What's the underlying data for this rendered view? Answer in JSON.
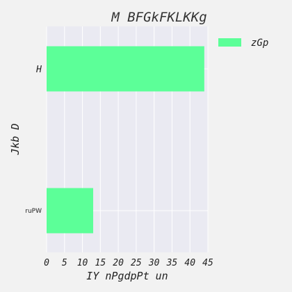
{
  "chart_data": {
    "type": "bar",
    "orientation": "horizontal",
    "title": "M BFGkFKLKKg",
    "xlabel": "IY nPgdpPt un",
    "ylabel": "Jkb D",
    "categories": [
      "ruPW",
      "H"
    ],
    "series": [
      {
        "name": "zGp",
        "values": [
          13,
          44
        ],
        "color": "#5cff98"
      }
    ],
    "xlim": [
      0,
      45
    ],
    "xticks": [
      "0",
      "5",
      "10",
      "15",
      "20",
      "25",
      "30",
      "35",
      "40",
      "45"
    ],
    "grid": true,
    "legend_position": "outside-top-right",
    "plot_background": "#eaeaf2",
    "figure_background": "#f2f2f2"
  }
}
